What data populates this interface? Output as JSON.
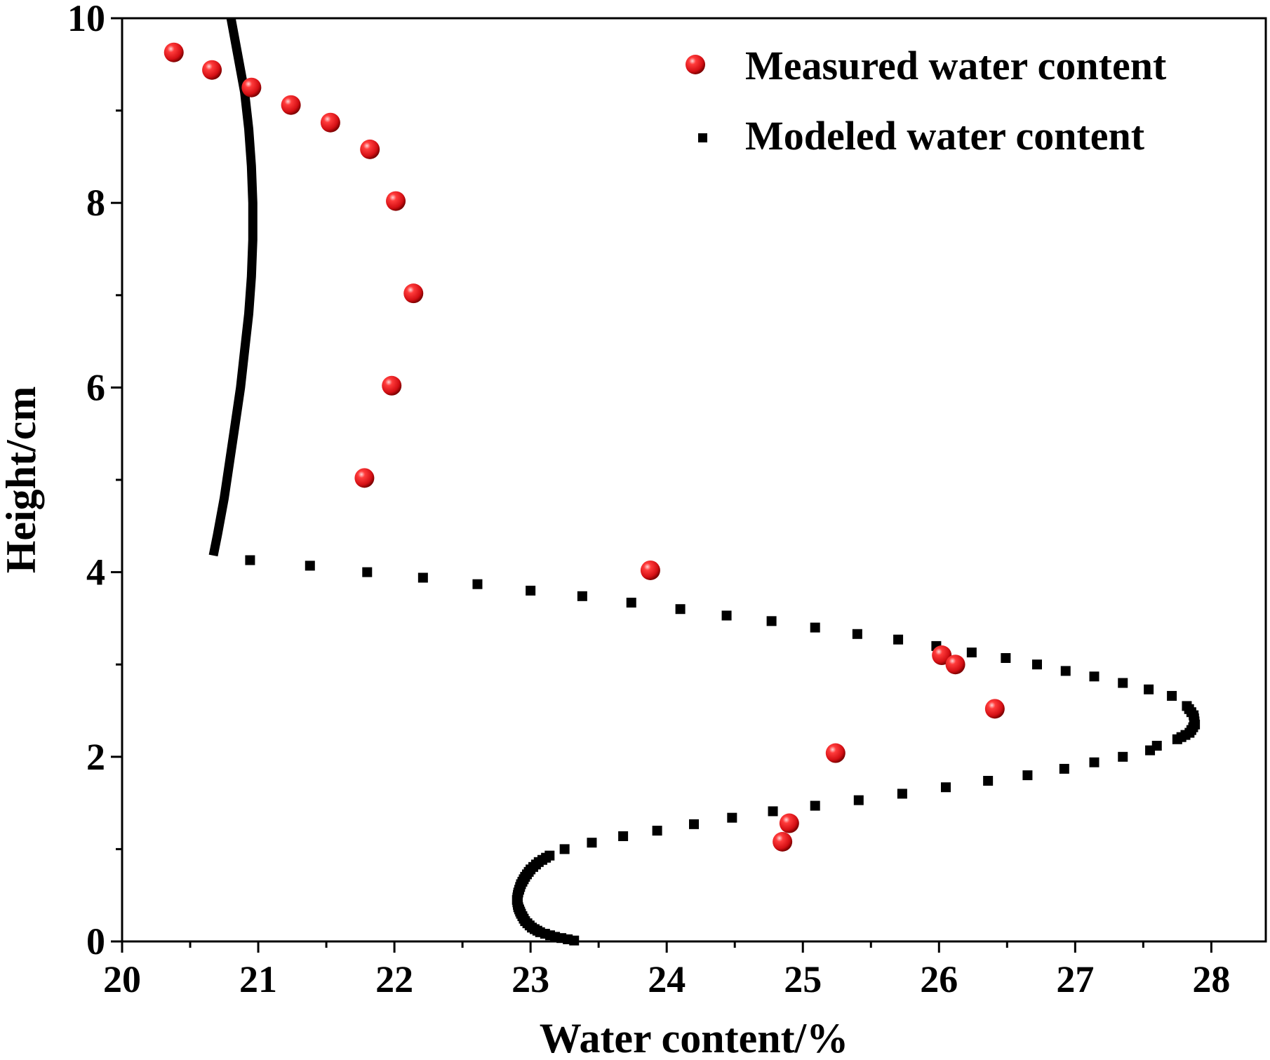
{
  "chart_data": {
    "type": "scatter",
    "xlabel": "Water content/%",
    "ylabel": "Height/cm",
    "xlim": [
      20,
      28.4
    ],
    "ylim": [
      0,
      10
    ],
    "x_major_ticks": [
      20,
      21,
      22,
      23,
      24,
      25,
      26,
      27,
      28
    ],
    "y_major_ticks": [
      0,
      2,
      4,
      6,
      8,
      10
    ],
    "x_tick_labels": [
      "20",
      "21",
      "22",
      "23",
      "24",
      "25",
      "26",
      "27",
      "28"
    ],
    "y_tick_labels": [
      "0",
      "2",
      "4",
      "6",
      "8",
      "10"
    ],
    "x_minor_ticks": [
      20.5,
      21.5,
      22.5,
      23.5,
      24.5,
      25.5,
      26.5,
      27.5
    ],
    "y_minor_ticks": [
      1,
      3,
      5,
      7,
      9
    ],
    "grid": false,
    "legend_position": "top-right",
    "series": [
      {
        "name": "Measured water content",
        "marker": "red-sphere",
        "color": "#e8171b",
        "points": [
          [
            20.38,
            9.63
          ],
          [
            20.66,
            9.44
          ],
          [
            20.95,
            9.25
          ],
          [
            21.24,
            9.06
          ],
          [
            21.53,
            8.87
          ],
          [
            21.82,
            8.58
          ],
          [
            22.01,
            8.02
          ],
          [
            22.14,
            7.02
          ],
          [
            21.98,
            6.02
          ],
          [
            21.78,
            5.02
          ],
          [
            23.88,
            4.02
          ],
          [
            26.02,
            3.1
          ],
          [
            26.12,
            3.0
          ],
          [
            26.41,
            2.52
          ],
          [
            25.24,
            2.04
          ],
          [
            24.9,
            1.28
          ],
          [
            24.85,
            1.08
          ]
        ]
      },
      {
        "name": "Modeled water content",
        "marker": "black-square",
        "color": "#000000",
        "points": [
          [
            20.8,
            10.0
          ],
          [
            20.85,
            9.6
          ],
          [
            20.9,
            9.2
          ],
          [
            20.93,
            8.8
          ],
          [
            20.95,
            8.4
          ],
          [
            20.96,
            8.0
          ],
          [
            20.96,
            7.6
          ],
          [
            20.95,
            7.2
          ],
          [
            20.93,
            6.8
          ],
          [
            20.9,
            6.4
          ],
          [
            20.87,
            6.0
          ],
          [
            20.83,
            5.6
          ],
          [
            20.79,
            5.2
          ],
          [
            20.75,
            4.8
          ],
          [
            20.7,
            4.4
          ],
          [
            20.67,
            4.18
          ],
          [
            20.94,
            4.13
          ],
          [
            21.38,
            4.07
          ],
          [
            21.8,
            4.0
          ],
          [
            22.21,
            3.94
          ],
          [
            22.61,
            3.87
          ],
          [
            23.0,
            3.8
          ],
          [
            23.38,
            3.74
          ],
          [
            23.74,
            3.67
          ],
          [
            24.1,
            3.6
          ],
          [
            24.44,
            3.53
          ],
          [
            24.77,
            3.47
          ],
          [
            25.09,
            3.4
          ],
          [
            25.4,
            3.33
          ],
          [
            25.7,
            3.27
          ],
          [
            25.98,
            3.2
          ],
          [
            26.24,
            3.13
          ],
          [
            26.49,
            3.07
          ],
          [
            26.72,
            3.0
          ],
          [
            26.93,
            2.93
          ],
          [
            27.14,
            2.87
          ],
          [
            27.35,
            2.8
          ],
          [
            27.54,
            2.73
          ],
          [
            27.71,
            2.66
          ],
          [
            27.82,
            2.55
          ],
          [
            27.87,
            2.45
          ],
          [
            27.88,
            2.35
          ],
          [
            27.84,
            2.26
          ],
          [
            27.75,
            2.19
          ],
          [
            27.6,
            2.12
          ],
          [
            27.55,
            2.07
          ],
          [
            27.35,
            2.0
          ],
          [
            27.14,
            1.94
          ],
          [
            26.92,
            1.87
          ],
          [
            26.65,
            1.8
          ],
          [
            26.36,
            1.74
          ],
          [
            26.05,
            1.67
          ],
          [
            25.73,
            1.6
          ],
          [
            25.41,
            1.53
          ],
          [
            25.09,
            1.47
          ],
          [
            24.78,
            1.41
          ],
          [
            24.48,
            1.34
          ],
          [
            24.2,
            1.27
          ],
          [
            23.93,
            1.2
          ],
          [
            23.68,
            1.14
          ],
          [
            23.45,
            1.07
          ],
          [
            23.25,
            1.0
          ],
          [
            23.14,
            0.93
          ],
          [
            23.06,
            0.86
          ],
          [
            23.0,
            0.78
          ],
          [
            22.96,
            0.7
          ],
          [
            22.93,
            0.62
          ],
          [
            22.91,
            0.53
          ],
          [
            22.9,
            0.45
          ],
          [
            22.91,
            0.37
          ],
          [
            22.93,
            0.3
          ],
          [
            22.96,
            0.22
          ],
          [
            23.01,
            0.15
          ],
          [
            23.07,
            0.1
          ],
          [
            23.18,
            0.05
          ],
          [
            23.32,
            0.01
          ]
        ]
      }
    ]
  }
}
